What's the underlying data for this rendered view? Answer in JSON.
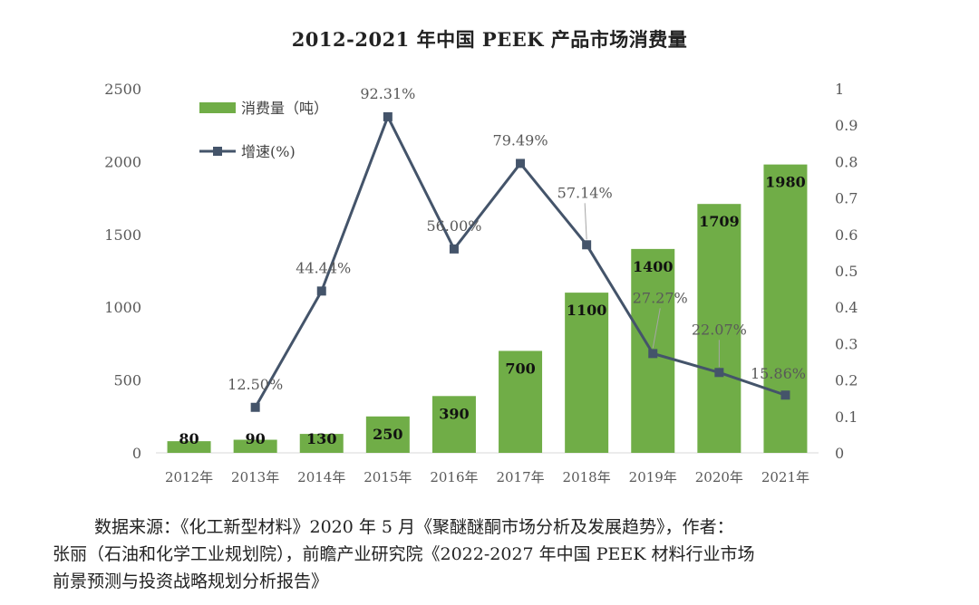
{
  "chart_data": {
    "type": "bar",
    "title": "2012-2021 年中国 PEEK 产品市场消费量",
    "categories": [
      "2012年",
      "2013年",
      "2014年",
      "2015年",
      "2016年",
      "2017年",
      "2018年",
      "2019年",
      "2020年",
      "2021年"
    ],
    "series": [
      {
        "name": "消费量（吨）",
        "type": "bar",
        "axis": "left",
        "color": "#70ad47",
        "values": [
          80,
          90,
          130,
          250,
          390,
          700,
          1100,
          1400,
          1709,
          1980
        ],
        "labels": [
          "80",
          "90",
          "130",
          "250",
          "390",
          "700",
          "1100",
          "1400",
          "1709",
          "1980"
        ]
      },
      {
        "name": "增速(%)",
        "type": "line",
        "axis": "right",
        "color": "#44546a",
        "values": [
          null,
          0.125,
          0.4444,
          0.9231,
          0.56,
          0.7949,
          0.5714,
          0.2727,
          0.2207,
          0.1586
        ],
        "labels": [
          null,
          "12.50%",
          "44.44%",
          "92.31%",
          "56.00%",
          "79.49%",
          "57.14%",
          "27.27%",
          "22.07%",
          "15.86%"
        ]
      }
    ],
    "yleft": {
      "range": [
        0,
        2500
      ],
      "ticks": [
        "0",
        "500",
        "1000",
        "1500",
        "2000",
        "2500"
      ]
    },
    "yright": {
      "range": [
        0,
        1
      ],
      "ticks": [
        "0",
        "0.1",
        "0.2",
        "0.3",
        "0.4",
        "0.5",
        "0.6",
        "0.7",
        "0.8",
        "0.9",
        "1"
      ]
    },
    "grid": false,
    "legend": "top-left"
  },
  "source": {
    "line1": "数据来源：《化工新型材料》2020 年 5 月《聚醚醚酮市场分析及发展趋势》，作者：",
    "line2": "张丽（石油和化学工业规划院），前瞻产业研究院《2022-2027 年中国 PEEK 材料行业市场",
    "line3": "前景预测与投资战略规划分析报告》"
  }
}
